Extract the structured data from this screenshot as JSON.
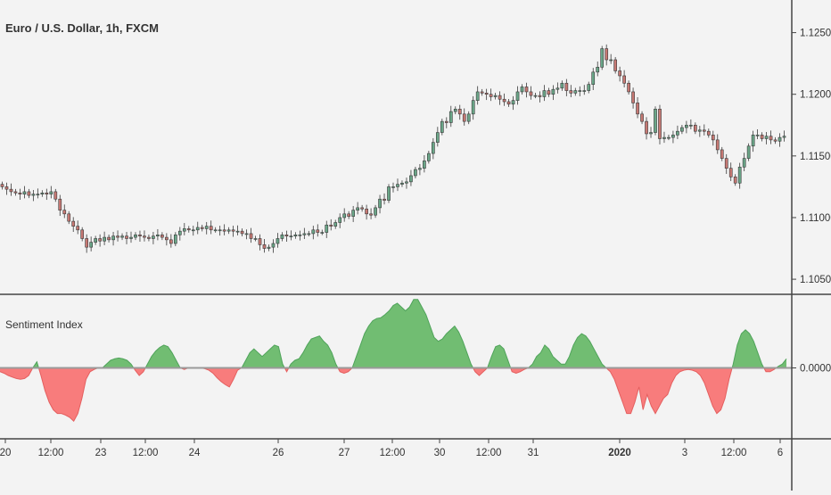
{
  "chart_data": [
    {
      "type": "candlestick",
      "title": "Euro / U.S. Dollar, 1h, FXCM",
      "y_ticks": [
        "1.12500",
        "1.12000",
        "1.11500",
        "1.11000",
        "1.10500"
      ],
      "y_tick_values": [
        1.125,
        1.12,
        1.115,
        1.11,
        1.105
      ],
      "ylim": [
        1.1045,
        1.1262
      ],
      "close_series": [
        1.1125,
        1.1123,
        1.1121,
        1.112,
        1.1119,
        1.1121,
        1.1118,
        1.1119,
        1.1119,
        1.112,
        1.1119,
        1.1121,
        1.1115,
        1.1106,
        1.1103,
        1.1097,
        1.1093,
        1.109,
        1.1083,
        1.1076,
        1.108,
        1.1083,
        1.1081,
        1.1084,
        1.1082,
        1.1085,
        1.1084,
        1.1085,
        1.1083,
        1.1084,
        1.1086,
        1.1085,
        1.1084,
        1.1083,
        1.1085,
        1.1086,
        1.1084,
        1.1082,
        1.1079,
        1.1086,
        1.1089,
        1.1091,
        1.109,
        1.109,
        1.1092,
        1.1091,
        1.1093,
        1.109,
        1.109,
        1.109,
        1.1089,
        1.109,
        1.1089,
        1.1089,
        1.1087,
        1.1087,
        1.1083,
        1.1083,
        1.1078,
        1.1075,
        1.1076,
        1.1079,
        1.1083,
        1.1086,
        1.1085,
        1.1085,
        1.1086,
        1.1086,
        1.1087,
        1.1087,
        1.109,
        1.1088,
        1.1088,
        1.1094,
        1.1093,
        1.1096,
        1.11,
        1.1103,
        1.1101,
        1.1106,
        1.1108,
        1.1107,
        1.1103,
        1.1102,
        1.1108,
        1.1115,
        1.1114,
        1.1125,
        1.1125,
        1.1127,
        1.1128,
        1.1129,
        1.1134,
        1.1139,
        1.114,
        1.1146,
        1.1152,
        1.1161,
        1.1169,
        1.1178,
        1.1177,
        1.1186,
        1.1188,
        1.1184,
        1.1178,
        1.1184,
        1.1195,
        1.1202,
        1.1201,
        1.12,
        1.1198,
        1.1199,
        1.1196,
        1.1194,
        1.1192,
        1.1195,
        1.1202,
        1.1206,
        1.1202,
        1.1199,
        1.1199,
        1.1198,
        1.1203,
        1.12,
        1.1204,
        1.1205,
        1.1209,
        1.1203,
        1.1201,
        1.1203,
        1.1203,
        1.1203,
        1.1208,
        1.1218,
        1.1222,
        1.1237,
        1.1228,
        1.1228,
        1.1219,
        1.1215,
        1.1209,
        1.1202,
        1.1193,
        1.1184,
        1.1178,
        1.1168,
        1.1169,
        1.1188,
        1.1164,
        1.1165,
        1.1165,
        1.1167,
        1.117,
        1.1173,
        1.1175,
        1.1175,
        1.117,
        1.1171,
        1.117,
        1.1167,
        1.1163,
        1.1155,
        1.1148,
        1.114,
        1.1133,
        1.1128,
        1.1141,
        1.1148,
        1.1158,
        1.1167,
        1.1167,
        1.1164,
        1.1166,
        1.1163,
        1.1162,
        1.1165,
        1.1166
      ]
    },
    {
      "type": "area",
      "title": "Sentiment Index",
      "y_ticks": [
        "0.00000"
      ],
      "y_tick_values": [
        0
      ],
      "ylim": [
        -0.85,
        0.85
      ],
      "positive_color": "#71bd72",
      "negative_color": "#f87c7c",
      "values": [
        -0.05,
        -0.07,
        -0.1,
        -0.12,
        -0.14,
        -0.15,
        -0.14,
        -0.1,
        0.0,
        0.08,
        -0.1,
        -0.3,
        -0.45,
        -0.55,
        -0.6,
        -0.6,
        -0.62,
        -0.65,
        -0.7,
        -0.6,
        -0.4,
        -0.15,
        -0.05,
        -0.02,
        0.0,
        0.0,
        0.05,
        0.1,
        0.12,
        0.13,
        0.12,
        0.1,
        0.05,
        -0.03,
        -0.1,
        -0.05,
        0.05,
        0.15,
        0.22,
        0.27,
        0.3,
        0.28,
        0.2,
        0.1,
        0.0,
        -0.02,
        0.0,
        0.0,
        0.0,
        0.0,
        -0.01,
        -0.03,
        -0.07,
        -0.13,
        -0.18,
        -0.22,
        -0.25,
        -0.15,
        -0.03,
        0.0,
        0.1,
        0.2,
        0.25,
        0.2,
        0.15,
        0.2,
        0.25,
        0.3,
        0.28,
        0.05,
        -0.05,
        0.05,
        0.1,
        0.12,
        0.2,
        0.3,
        0.38,
        0.4,
        0.42,
        0.35,
        0.3,
        0.2,
        0.05,
        -0.05,
        -0.07,
        -0.05,
        0.0,
        0.15,
        0.3,
        0.45,
        0.55,
        0.62,
        0.65,
        0.66,
        0.7,
        0.75,
        0.82,
        0.85,
        0.8,
        0.75,
        0.8,
        0.9,
        0.9,
        0.8,
        0.7,
        0.55,
        0.4,
        0.35,
        0.38,
        0.45,
        0.5,
        0.55,
        0.47,
        0.35,
        0.2,
        0.05,
        -0.05,
        -0.1,
        -0.05,
        0.0,
        0.15,
        0.28,
        0.3,
        0.25,
        0.1,
        -0.05,
        -0.07,
        -0.05,
        -0.02,
        0.0,
        0.05,
        0.15,
        0.2,
        0.3,
        0.25,
        0.15,
        0.1,
        0.05,
        0.05,
        0.15,
        0.3,
        0.4,
        0.45,
        0.42,
        0.35,
        0.25,
        0.15,
        0.05,
        0.0,
        -0.05,
        -0.15,
        -0.3,
        -0.45,
        -0.6,
        -0.6,
        -0.45,
        -0.25,
        -0.55,
        -0.35,
        -0.5,
        -0.6,
        -0.5,
        -0.4,
        -0.35,
        -0.2,
        -0.1,
        -0.05,
        -0.03,
        -0.02,
        -0.03,
        -0.05,
        -0.1,
        -0.2,
        -0.35,
        -0.5,
        -0.6,
        -0.55,
        -0.4,
        -0.15,
        0.05,
        0.3,
        0.45,
        0.5,
        0.45,
        0.35,
        0.2,
        0.05,
        -0.05,
        -0.05,
        -0.02,
        0.02,
        0.05,
        0.12
      ]
    }
  ],
  "x_axis": {
    "labels": [
      "20",
      "12:00",
      "23",
      "12:00",
      "24",
      "26",
      "27",
      "12:00",
      "30",
      "12:00",
      "31",
      "2020",
      "3",
      "12:00",
      "6"
    ],
    "bold": [
      false,
      false,
      false,
      false,
      false,
      false,
      false,
      false,
      false,
      false,
      false,
      true,
      false,
      false,
      false
    ]
  },
  "colors": {
    "background": "#f3f3f3",
    "up": "#6aa688",
    "down": "#c67873",
    "axis": "#444444",
    "zero_line": "#9a9a9a",
    "text": "#333333"
  }
}
